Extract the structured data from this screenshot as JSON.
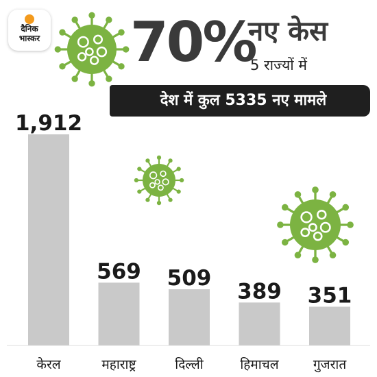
{
  "brand": {
    "line1": "दैनिक",
    "line2": "भास्कर",
    "accent": "#f39a1d"
  },
  "headline": {
    "percent": "70%",
    "title": "नए केस",
    "subtitle": "5 राज्यों में"
  },
  "banner": {
    "text": "देश में कुल 5335 नए मामले"
  },
  "colors": {
    "bar": "#c9c9c9",
    "virus": "#7cb342",
    "virus_spot": "#ffffff",
    "text": "#1a1a1a"
  },
  "chart_data": {
    "type": "bar",
    "categories": [
      "केरल",
      "महाराष्ट्र",
      "दिल्ली",
      "हिमाचल",
      "गुजरात"
    ],
    "values": [
      1912,
      569,
      509,
      389,
      351
    ],
    "value_labels": [
      "1,912",
      "569",
      "509",
      "389",
      "351"
    ],
    "title": "",
    "xlabel": "",
    "ylabel": "",
    "ylim": [
      0,
      1912
    ],
    "grid": false
  }
}
